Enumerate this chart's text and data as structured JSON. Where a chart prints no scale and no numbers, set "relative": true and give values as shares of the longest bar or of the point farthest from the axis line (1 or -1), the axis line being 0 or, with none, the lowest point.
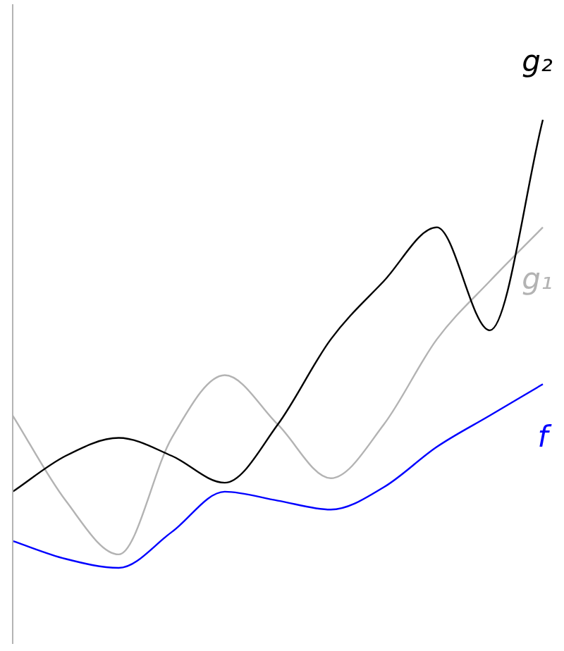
{
  "chart_data": {
    "type": "line",
    "relative": true,
    "categories": [
      null,
      null,
      null,
      null,
      null,
      null,
      null,
      null,
      null,
      null,
      null
    ],
    "series": [
      {
        "name": "g₂",
        "color": "#000000",
        "values": [
          0.17,
          0.25,
          0.29,
          0.25,
          0.19,
          0.32,
          0.51,
          0.64,
          0.76,
          0.53,
          1
        ]
      },
      {
        "name": "g₁",
        "color": "#b3b3b3",
        "values": [
          0.34,
          0.15,
          0.03,
          0.29,
          0.43,
          0.32,
          0.2,
          0.32,
          0.51,
          0.64,
          0.76
        ]
      },
      {
        "name": "f",
        "color": "#0000ff",
        "values": [
          0.06,
          0.02,
          0,
          0.08,
          0.17,
          0.15,
          0.13,
          0.18,
          0.27,
          0.34,
          0.41
        ]
      }
    ],
    "legend": false,
    "marker": "none",
    "line_style": "solid"
  }
}
